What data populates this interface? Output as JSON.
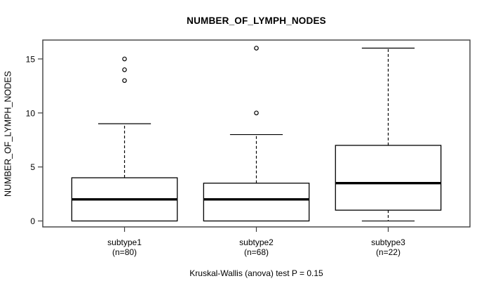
{
  "chart_data": {
    "type": "boxplot",
    "title": "NUMBER_OF_LYMPH_NODES",
    "ylabel": "NUMBER_OF_LYMPH_NODES",
    "caption": "Kruskal-Wallis (anova) test P = 0.15",
    "ylim": [
      -0.55,
      16.75
    ],
    "yticks": [
      0,
      5,
      10,
      15
    ],
    "grid": false,
    "categories": [
      "subtype1",
      "subtype2",
      "subtype3"
    ],
    "groups": [
      {
        "label": "subtype1",
        "count_label": "(n=80)",
        "n": 80,
        "whisker_low": 0,
        "q1": 0,
        "median": 2,
        "q3": 4,
        "whisker_high": 9,
        "outliers": [
          13,
          14,
          15
        ]
      },
      {
        "label": "subtype2",
        "count_label": "(n=68)",
        "n": 68,
        "whisker_low": 0,
        "q1": 0,
        "median": 2,
        "q3": 3.5,
        "whisker_high": 8,
        "outliers": [
          10,
          16
        ]
      },
      {
        "label": "subtype3",
        "count_label": "(n=22)",
        "n": 22,
        "whisker_low": 0,
        "q1": 1,
        "median": 3.5,
        "q3": 7,
        "whisker_high": 16,
        "outliers": []
      }
    ]
  },
  "colors": {
    "line": "#000000",
    "frame": "#3f3f3f",
    "box_fill": "#ffffff",
    "background": "#ffffff"
  }
}
